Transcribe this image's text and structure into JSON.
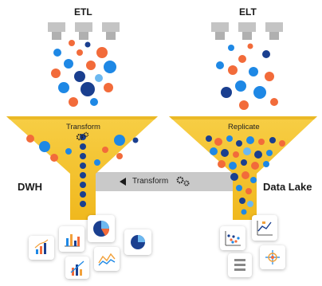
{
  "etl": {
    "title": "ETL",
    "stage_label": "Transform",
    "target_label": "DWH"
  },
  "elt": {
    "title": "ELT",
    "stage_label": "Replicate",
    "target_label": "Data Lake"
  },
  "bridge": {
    "label": "Transform"
  },
  "colors": {
    "blue": "#1e88e5",
    "dark_blue": "#1a3f8f",
    "orange": "#f26b3a",
    "light_blue": "#6cb8f0",
    "funnel": "#f5c531",
    "funnel_edge": "#e3ac12",
    "pipe": "#bcbcbc",
    "bridge_bar": "#c9c9c9"
  },
  "icons": [
    "pipe-icon",
    "gear-icon",
    "arrow-left-icon",
    "chart-card-icon"
  ]
}
